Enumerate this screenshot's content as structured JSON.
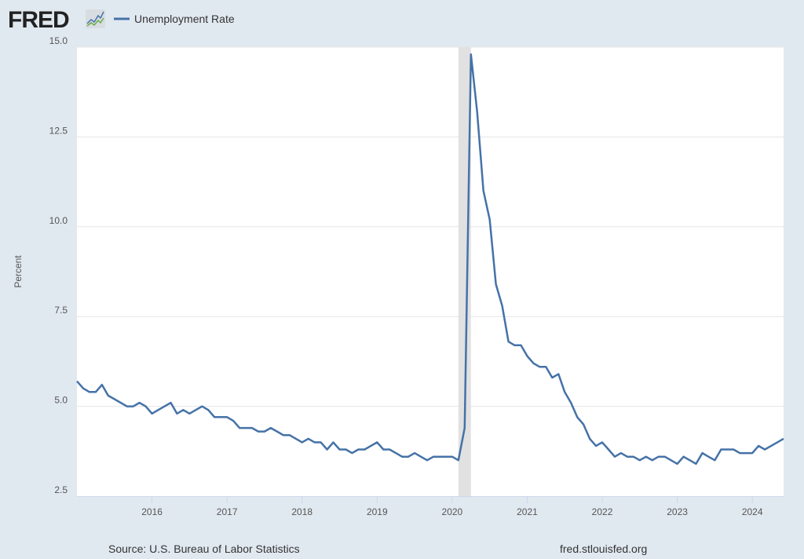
{
  "header": {
    "logo_text": "FRED",
    "legend_label": "Unemployment Rate"
  },
  "footer": {
    "source": "Source: U.S. Bureau of Labor Statistics",
    "site": "fred.stlouisfed.org"
  },
  "colors": {
    "line": "#4572a7",
    "background": "#e1e9f0",
    "recession": "#e1e1e1",
    "grid": "#e6e6e6"
  },
  "chart_data": {
    "type": "line",
    "title": "Unemployment Rate",
    "xlabel": "",
    "ylabel": "Percent",
    "ylim": [
      2.5,
      15.0
    ],
    "yticks": [
      "2.5",
      "5.0",
      "7.5",
      "10.0",
      "12.5",
      "15.0"
    ],
    "xticks": [
      "2016",
      "2017",
      "2018",
      "2019",
      "2020",
      "2021",
      "2022",
      "2023",
      "2024"
    ],
    "x_start": "2015-01",
    "x_end": "2024-06",
    "frequency": "monthly",
    "grid": true,
    "legend_position": "top-left",
    "recessions": [
      {
        "start": "2020-02",
        "end": "2020-04"
      }
    ],
    "series": [
      {
        "name": "Unemployment Rate",
        "values": [
          5.7,
          5.5,
          5.4,
          5.4,
          5.6,
          5.3,
          5.2,
          5.1,
          5.0,
          5.0,
          5.1,
          5.0,
          4.8,
          4.9,
          5.0,
          5.1,
          4.8,
          4.9,
          4.8,
          4.9,
          5.0,
          4.9,
          4.7,
          4.7,
          4.7,
          4.6,
          4.4,
          4.4,
          4.4,
          4.3,
          4.3,
          4.4,
          4.3,
          4.2,
          4.2,
          4.1,
          4.0,
          4.1,
          4.0,
          4.0,
          3.8,
          4.0,
          3.8,
          3.8,
          3.7,
          3.8,
          3.8,
          3.9,
          4.0,
          3.8,
          3.8,
          3.7,
          3.6,
          3.6,
          3.7,
          3.6,
          3.5,
          3.6,
          3.6,
          3.6,
          3.6,
          3.5,
          4.4,
          14.8,
          13.2,
          11.0,
          10.2,
          8.4,
          7.8,
          6.8,
          6.7,
          6.7,
          6.4,
          6.2,
          6.1,
          6.1,
          5.8,
          5.9,
          5.4,
          5.1,
          4.7,
          4.5,
          4.1,
          3.9,
          4.0,
          3.8,
          3.6,
          3.7,
          3.6,
          3.6,
          3.5,
          3.6,
          3.5,
          3.6,
          3.6,
          3.5,
          3.4,
          3.6,
          3.5,
          3.4,
          3.7,
          3.6,
          3.5,
          3.8,
          3.8,
          3.8,
          3.7,
          3.7,
          3.7,
          3.9,
          3.8,
          3.9,
          4.0,
          4.1
        ]
      }
    ]
  }
}
